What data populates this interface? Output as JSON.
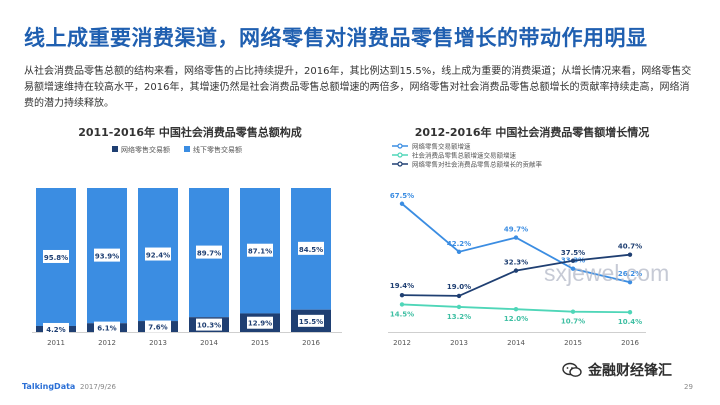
{
  "page": {
    "title": "线上成重要消费渠道，网络零售对消费品零售增长的带动作用明显",
    "intro": "从社会消费品零售总额的结构来看，网络零售的占比持续提升，2016年，其比例达到15.5%，线上成为重要的消费渠道；从增长情况来看，网络零售交易额增速维持在较高水平，2016年，其增速仍然是社会消费品零售总额增速的两倍多，网络零售对社会消费品零售总额增长的贡献率持续走高，网络消费的潜力持续释放。",
    "footer_logo": "TalkingData",
    "footer_date": "2017/9/26",
    "page_number": "29",
    "watermark_url": "sxjewel.com",
    "watermark_brand": "金融财经锋汇"
  },
  "chart_data": [
    {
      "type": "bar",
      "stacked": true,
      "title": "2011-2016年 中国社会消费品零售总额构成",
      "categories": [
        "2011",
        "2012",
        "2013",
        "2014",
        "2015",
        "2016"
      ],
      "series": [
        {
          "name": "网络零售交易额",
          "values": [
            4.2,
            6.1,
            7.6,
            10.3,
            12.9,
            15.5
          ],
          "color": "#1f3f72",
          "labels": [
            "4.2%",
            "6.1%",
            "7.6%",
            "10.3%",
            "12.9%",
            "15.5%"
          ]
        },
        {
          "name": "线下零售交易额",
          "values": [
            95.8,
            93.9,
            92.4,
            89.7,
            87.1,
            84.5
          ],
          "color": "#3b8de2",
          "labels": [
            "95.8%",
            "93.9%",
            "92.4%",
            "89.7%",
            "87.1%",
            "84.5%"
          ]
        }
      ],
      "ylim": [
        0,
        100
      ],
      "legend": "top-center",
      "grid": false
    },
    {
      "type": "line",
      "title": "2012-2016年 中国社会消费品零售额增长情况",
      "categories": [
        "2012",
        "2013",
        "2014",
        "2015",
        "2016"
      ],
      "series": [
        {
          "name": "网络零售交易额增速",
          "values": [
            67.5,
            42.2,
            49.7,
            33.3,
            26.2
          ],
          "color": "#3b8de2",
          "labels": [
            "67.5%",
            "42.2%",
            "49.7%",
            "33.3%",
            "26.2%"
          ]
        },
        {
          "name": "社会消费品零售总额增速交易额增速",
          "values": [
            14.5,
            13.2,
            12.0,
            10.7,
            10.4
          ],
          "color": "#4fd6b8",
          "labels": [
            "14.5%",
            "13.2%",
            "12.0%",
            "10.7%",
            "10.4%"
          ]
        },
        {
          "name": "网络零售对社会消费品零售总额增长的贡献率",
          "values": [
            19.4,
            19.0,
            32.3,
            37.5,
            40.7
          ],
          "color": "#1f3f72",
          "labels": [
            "19.4%",
            "19.0%",
            "32.3%",
            "37.5%",
            "40.7%"
          ]
        }
      ],
      "ylim": [
        0,
        80
      ],
      "legend": "top-left",
      "grid": false
    }
  ]
}
